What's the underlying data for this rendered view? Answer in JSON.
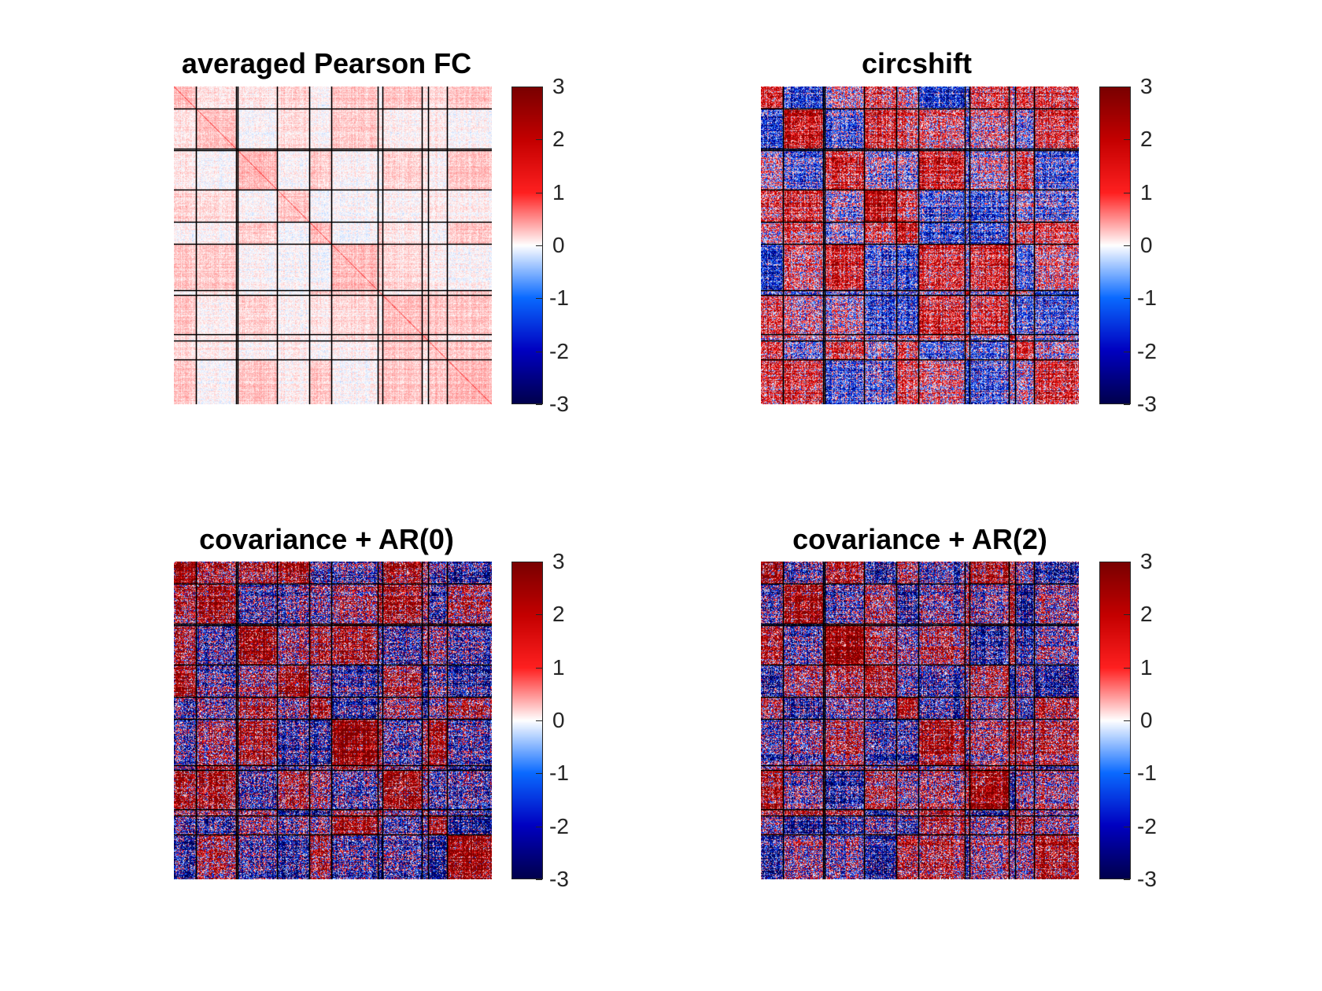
{
  "figure": {
    "colormap": {
      "name": "blue-white-red",
      "stops": [
        "#00004d",
        "#0000c0",
        "#0a6aff",
        "#ffffff",
        "#ff2020",
        "#c40000",
        "#7a0000"
      ]
    },
    "colorbar_ticks": [
      "3",
      "2",
      "1",
      "0",
      "-1",
      "-2",
      "-3"
    ],
    "colorbar_range": [
      -3,
      3
    ]
  },
  "chart_data": [
    {
      "type": "heatmap",
      "title": "averaged Pearson FC",
      "clim": [
        -3,
        3
      ],
      "colorbar_ticks": [
        3,
        2,
        1,
        0,
        -1,
        -2,
        -3
      ],
      "grid": "black network-boundary lines",
      "dominant_values": "weak, mostly 0 to 0.5; positive diagonal and within-block values",
      "intensity": 0.18
    },
    {
      "type": "heatmap",
      "title": "circshift",
      "clim": [
        -3,
        3
      ],
      "colorbar_ticks": [
        3,
        2,
        1,
        0,
        -1,
        -2,
        -3
      ],
      "grid": "black network-boundary lines",
      "dominant_values": "strong positive within-block, negative between first blocks",
      "intensity": 0.6
    },
    {
      "type": "heatmap",
      "title": "covariance + AR(0)",
      "clim": [
        -3,
        3
      ],
      "colorbar_ticks": [
        3,
        2,
        1,
        0,
        -1,
        -2,
        -3
      ],
      "grid": "black network-boundary lines",
      "dominant_values": "saturated red and blue, block structure",
      "intensity": 0.95
    },
    {
      "type": "heatmap",
      "title": "covariance + AR(2)",
      "clim": [
        -3,
        3
      ],
      "colorbar_ticks": [
        3,
        2,
        1,
        0,
        -1,
        -2,
        -3
      ],
      "grid": "black network-boundary lines",
      "dominant_values": "saturated red and blue, block structure",
      "intensity": 0.9
    }
  ]
}
